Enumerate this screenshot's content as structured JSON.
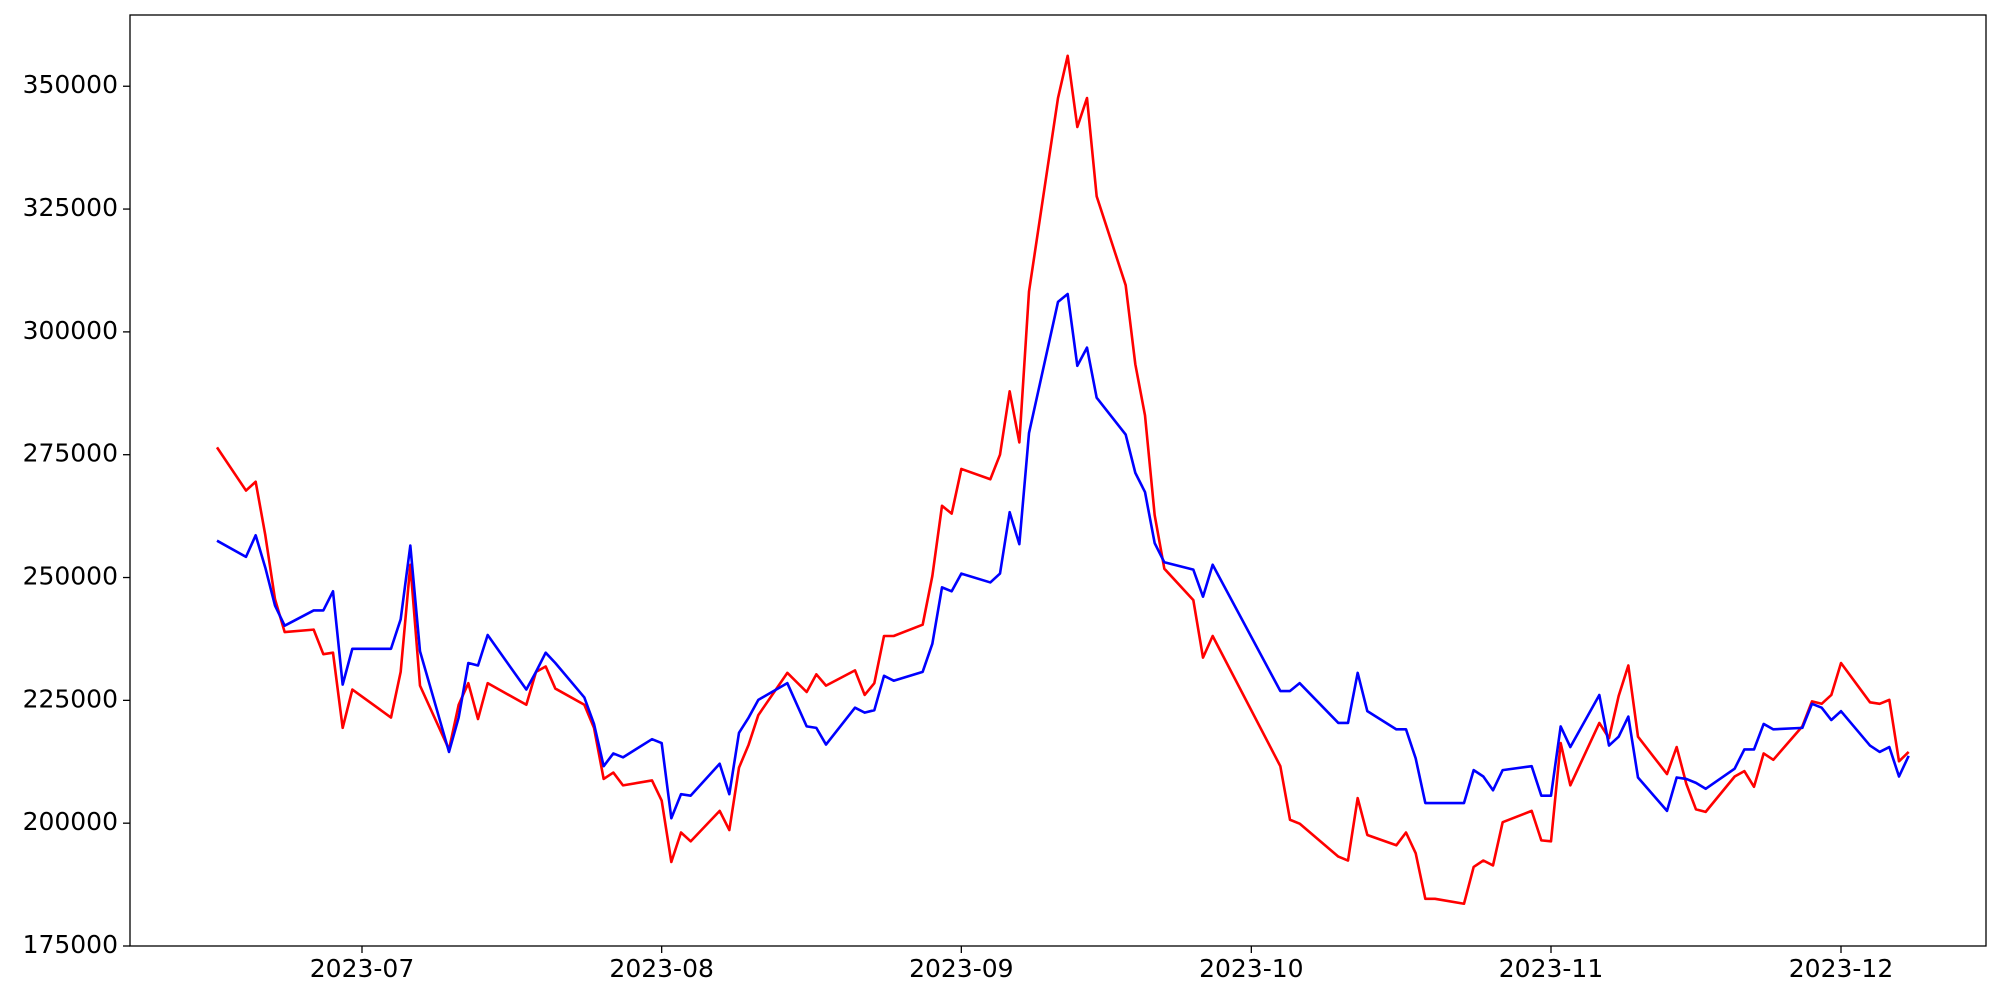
{
  "chart_data": {
    "type": "line",
    "x": [
      "2023-06-16",
      "2023-06-19",
      "2023-06-20",
      "2023-06-21",
      "2023-06-22",
      "2023-06-23",
      "2023-06-26",
      "2023-06-27",
      "2023-06-28",
      "2023-06-29",
      "2023-06-30",
      "2023-07-04",
      "2023-07-05",
      "2023-07-06",
      "2023-07-07",
      "2023-07-10",
      "2023-07-11",
      "2023-07-12",
      "2023-07-13",
      "2023-07-14",
      "2023-07-18",
      "2023-07-19",
      "2023-07-20",
      "2023-07-21",
      "2023-07-24",
      "2023-07-25",
      "2023-07-26",
      "2023-07-27",
      "2023-07-28",
      "2023-07-31",
      "2023-08-01",
      "2023-08-02",
      "2023-08-03",
      "2023-08-04",
      "2023-08-07",
      "2023-08-08",
      "2023-08-09",
      "2023-08-10",
      "2023-08-11",
      "2023-08-14",
      "2023-08-16",
      "2023-08-17",
      "2023-08-18",
      "2023-08-21",
      "2023-08-22",
      "2023-08-23",
      "2023-08-24",
      "2023-08-25",
      "2023-08-28",
      "2023-08-29",
      "2023-08-30",
      "2023-08-31",
      "2023-09-01",
      "2023-09-04",
      "2023-09-05",
      "2023-09-06",
      "2023-09-07",
      "2023-09-08",
      "2023-09-11",
      "2023-09-12",
      "2023-09-13",
      "2023-09-14",
      "2023-09-15",
      "2023-09-18",
      "2023-09-19",
      "2023-09-20",
      "2023-09-21",
      "2023-09-22",
      "2023-09-25",
      "2023-09-26",
      "2023-09-27",
      "2023-10-04",
      "2023-10-05",
      "2023-10-06",
      "2023-10-10",
      "2023-10-11",
      "2023-10-12",
      "2023-10-13",
      "2023-10-16",
      "2023-10-17",
      "2023-10-18",
      "2023-10-19",
      "2023-10-20",
      "2023-10-23",
      "2023-10-24",
      "2023-10-25",
      "2023-10-26",
      "2023-10-27",
      "2023-10-30",
      "2023-10-31",
      "2023-11-01",
      "2023-11-02",
      "2023-11-03",
      "2023-11-06",
      "2023-11-07",
      "2023-11-08",
      "2023-11-09",
      "2023-11-10",
      "2023-11-13",
      "2023-11-14",
      "2023-11-15",
      "2023-11-16",
      "2023-11-17",
      "2023-11-20",
      "2023-11-21",
      "2023-11-22",
      "2023-11-23",
      "2023-11-24",
      "2023-11-27",
      "2023-11-28",
      "2023-11-29",
      "2023-11-30",
      "2023-12-01",
      "2023-12-04",
      "2023-12-05",
      "2023-12-06",
      "2023-12-07",
      "2023-12-08"
    ],
    "series": [
      {
        "color": "#ff0000",
        "values": [
          276500,
          267700,
          269500,
          258600,
          245600,
          238900,
          239400,
          234400,
          234700,
          219400,
          227200,
          221500,
          230800,
          252600,
          228000,
          215000,
          224100,
          228500,
          221200,
          228500,
          224100,
          230800,
          231900,
          227400,
          224100,
          219400,
          209000,
          210300,
          207700,
          208700,
          204600,
          192100,
          198100,
          196300,
          202500,
          198600,
          211300,
          216000,
          222000,
          230600,
          226700,
          230300,
          228000,
          231100,
          226100,
          228500,
          238100,
          238100,
          240400,
          250300,
          264600,
          263000,
          272100,
          270000,
          275000,
          287900,
          277500,
          308200,
          347600,
          356200,
          341700,
          347600,
          327600,
          309500,
          293400,
          283000,
          262700,
          251800,
          245400,
          233700,
          238100,
          211600,
          200700,
          199900,
          193200,
          192400,
          205100,
          197600,
          195500,
          198100,
          193900,
          184600,
          184600,
          183600,
          191100,
          192400,
          191400,
          200200,
          202500,
          196500,
          196300,
          216300,
          207700,
          220400,
          217300,
          225900,
          232100,
          217600,
          210000,
          215500,
          208000,
          202800,
          202300,
          209500,
          210600,
          207400,
          214200,
          212900,
          219700,
          224800,
          224300,
          226100,
          232600,
          224600,
          224300,
          225100,
          212600,
          214500
        ]
      },
      {
        "color": "#0000ff",
        "values": [
          257500,
          254200,
          258600,
          252000,
          244300,
          240200,
          243300,
          243300,
          247200,
          228200,
          235500,
          235500,
          241500,
          256500,
          235000,
          214500,
          221500,
          232600,
          232100,
          238300,
          227200,
          230800,
          234700,
          232600,
          225600,
          220200,
          211600,
          214200,
          213400,
          217100,
          216300,
          201000,
          205900,
          205600,
          212100,
          205900,
          218400,
          221500,
          225100,
          228500,
          219700,
          219400,
          216000,
          223500,
          222500,
          223000,
          230000,
          229000,
          230800,
          236500,
          248000,
          247200,
          250800,
          249000,
          250800,
          263300,
          256800,
          279400,
          306100,
          307700,
          293100,
          296800,
          286600,
          279100,
          271300,
          267400,
          257000,
          253100,
          251600,
          246100,
          252600,
          226900,
          226900,
          228500,
          220400,
          220400,
          230600,
          222800,
          219100,
          219100,
          213200,
          204100,
          204100,
          204100,
          210800,
          209500,
          206700,
          210800,
          211600,
          205600,
          205600,
          219700,
          215500,
          226100,
          215800,
          217600,
          221700,
          209300,
          202500,
          209300,
          209000,
          208200,
          207000,
          211100,
          215000,
          215000,
          220200,
          219100,
          219400,
          224300,
          223500,
          221000,
          222800,
          215800,
          214500,
          215500,
          209500,
          213700
        ]
      }
    ],
    "xlim": [
      "2023-06-07",
      "2023-12-16"
    ],
    "xticks": [
      {
        "value": "2023-07-01",
        "label": "2023-07"
      },
      {
        "value": "2023-08-01",
        "label": "2023-08"
      },
      {
        "value": "2023-09-01",
        "label": "2023-09"
      },
      {
        "value": "2023-10-01",
        "label": "2023-10"
      },
      {
        "value": "2023-11-01",
        "label": "2023-11"
      },
      {
        "value": "2023-12-01",
        "label": "2023-12"
      }
    ],
    "ylim": [
      175000,
      364500
    ],
    "yticks": [
      175000,
      200000,
      225000,
      250000,
      275000,
      300000,
      325000,
      350000
    ],
    "grid": false
  }
}
